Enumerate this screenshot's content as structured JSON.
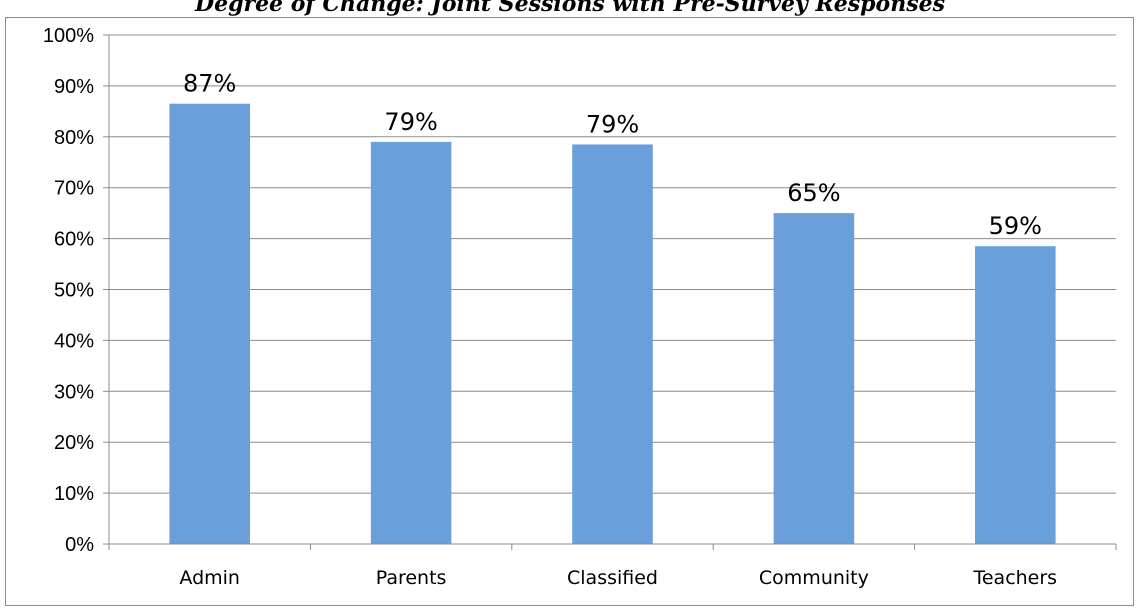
{
  "chart_data": {
    "type": "bar",
    "title": "Degree of Change: Joint Sessions with Pre-Survey Responses",
    "categories": [
      "Admin",
      "Parents",
      "Classified",
      "Community",
      "Teachers"
    ],
    "values": [
      86.5,
      79,
      78.5,
      65,
      58.5
    ],
    "data_labels": [
      "87%",
      "79%",
      "79%",
      "65%",
      "59%"
    ],
    "y_ticks": [
      "0%",
      "10%",
      "20%",
      "30%",
      "40%",
      "50%",
      "60%",
      "70%",
      "80%",
      "90%",
      "100%"
    ],
    "ylim": [
      0,
      100
    ],
    "xlabel": "",
    "ylabel": "",
    "grid": true,
    "legend": "none",
    "bar_color": "#6a9fdc",
    "grid_color": "#8c8c8c"
  }
}
